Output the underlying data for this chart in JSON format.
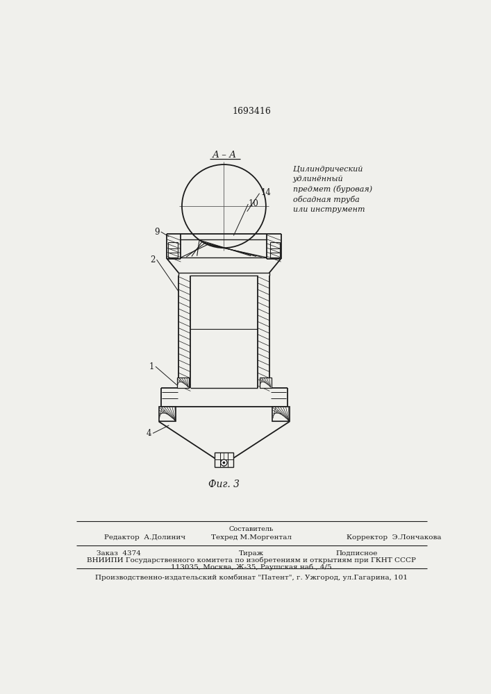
{
  "patent_number": "1693416",
  "fig_label": "Фиг. 3",
  "section_label": "А – А",
  "annotation_text": "Цилиндрический\nудлинённый\nпредмет (буровая)\nобсадная труба\nили инструмент",
  "bg_color": "#f0f0ec",
  "line_color": "#1a1a1a"
}
